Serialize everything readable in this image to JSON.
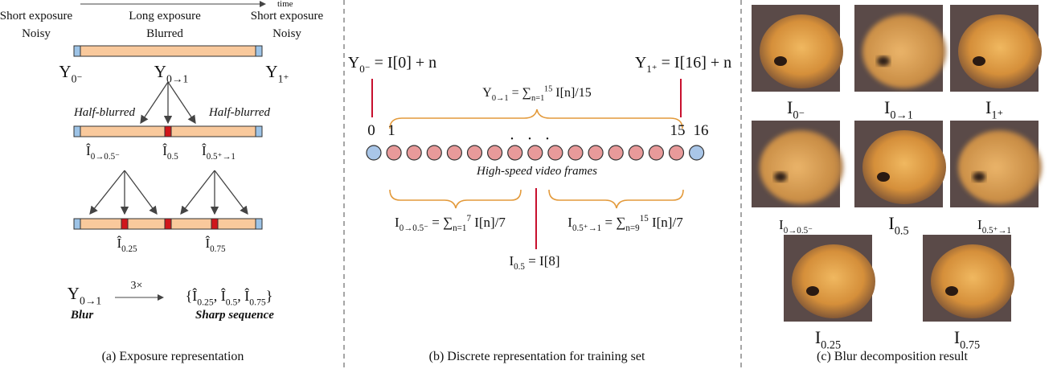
{
  "panel_a": {
    "time": "time",
    "top": [
      [
        "Short exposure",
        "Noisy"
      ],
      [
        "Long exposure",
        "Blurred"
      ],
      [
        "Short exposure",
        "Noisy"
      ]
    ],
    "y_labels": [
      [
        {
          "t": "Y"
        },
        {
          "sub": "0⁻"
        }
      ],
      [
        {
          "t": "Y"
        },
        {
          "sub": "0→1"
        }
      ],
      [
        {
          "t": "Y"
        },
        {
          "sub": "1⁺"
        }
      ]
    ],
    "half_blurred": [
      "Half-blurred",
      "Half-blurred"
    ],
    "mid_labels": [
      [
        {
          "t": "Î"
        },
        {
          "sub": "0→0.5⁻"
        }
      ],
      [
        {
          "t": "Î"
        },
        {
          "sub": "0.5"
        }
      ],
      [
        {
          "t": "Î"
        },
        {
          "sub": "0.5⁺→1"
        }
      ]
    ],
    "low_labels": [
      [
        {
          "t": "Î"
        },
        {
          "sub": "0.25"
        }
      ],
      [
        {
          "t": "Î"
        },
        {
          "sub": "0.75"
        }
      ]
    ],
    "blur_symbol": [
      {
        "t": "Y"
      },
      {
        "sub": "0→1"
      }
    ],
    "factor": "3×",
    "sharp_set": [
      {
        "t": "{Î"
      },
      {
        "sub": "0.25"
      },
      {
        "t": ", Î"
      },
      {
        "sub": "0.5"
      },
      {
        "t": ", Î"
      },
      {
        "sub": "0.75"
      },
      {
        "t": "}"
      }
    ],
    "blur_label": "Blur",
    "sharp_label": "Sharp sequence",
    "caption": "(a) Exposure representation"
  },
  "panel_b": {
    "eq_start": [
      {
        "t": "Y"
      },
      {
        "sub": "0⁻"
      },
      {
        "t": " = I[0] + n"
      }
    ],
    "eq_end": [
      {
        "t": "Y"
      },
      {
        "sub": "1⁺"
      },
      {
        "t": " = I[16] + n"
      }
    ],
    "eq_blur": [
      {
        "t": "Y"
      },
      {
        "sub": "0→1"
      },
      {
        "t": " = ∑"
      },
      {
        "sub": "n=1"
      },
      {
        "sup": "15"
      },
      {
        "t": " I[n]/15"
      }
    ],
    "frame_numbers": [
      "0",
      "1",
      "15",
      "16"
    ],
    "ellipsis": "• • •",
    "frames_label": "High-speed video frames",
    "eq_first_half": [
      {
        "t": "I"
      },
      {
        "sub": "0→0.5⁻"
      },
      {
        "t": " = ∑"
      },
      {
        "sub": "n=1"
      },
      {
        "sup": "7"
      },
      {
        "t": " I[n]/7"
      }
    ],
    "eq_second_half": [
      {
        "t": "I"
      },
      {
        "sub": "0.5⁺→1"
      },
      {
        "t": " = ∑"
      },
      {
        "sub": "n=9"
      },
      {
        "sup": "15"
      },
      {
        "t": " I[n]/7"
      }
    ],
    "eq_mid": [
      {
        "t": "I"
      },
      {
        "sub": "0.5"
      },
      {
        "t": " = I[8]"
      }
    ],
    "caption": "(b) Discrete representation for training set"
  },
  "panel_c": {
    "labels": [
      [
        {
          "t": "I"
        },
        {
          "sub": "0⁻"
        }
      ],
      [
        {
          "t": "I"
        },
        {
          "sub": "0→1"
        }
      ],
      [
        {
          "t": "I"
        },
        {
          "sub": "1⁺"
        }
      ],
      [
        {
          "t": "I"
        },
        {
          "sub": "0→0.5⁻"
        }
      ],
      [
        {
          "t": "I"
        },
        {
          "sub": "0.5"
        }
      ],
      [
        {
          "t": "I"
        },
        {
          "sub": "0.5⁺→1"
        }
      ],
      [
        {
          "t": "I"
        },
        {
          "sub": "0.25"
        }
      ],
      [
        {
          "t": "I"
        },
        {
          "sub": "0.75"
        }
      ]
    ],
    "caption": "(c) Blur decomposition result"
  }
}
